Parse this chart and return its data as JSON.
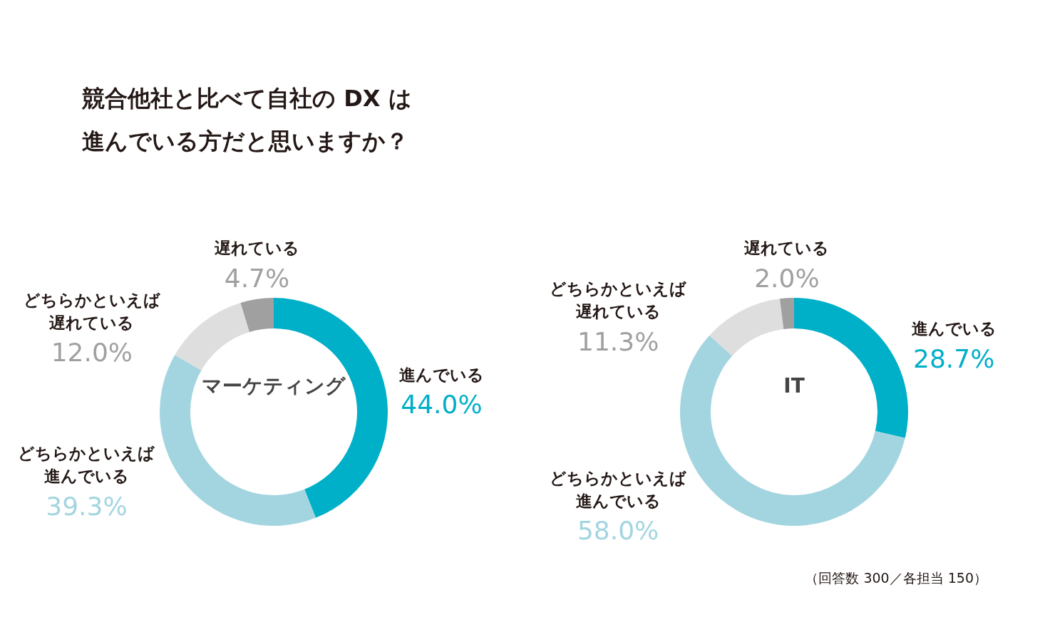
{
  "chart_data": [
    {
      "type": "other",
      "title": "競合他社と比べて自社の DX は進んでいる方だと思いますか？"
    },
    {
      "type": "donut",
      "title": "マーケティング",
      "categories": [
        "進んでいる",
        "どちらかといえば進んでいる",
        "どちらかといえば遅れている",
        "遅れている"
      ],
      "values": [
        44.0,
        39.3,
        12.0,
        4.7
      ],
      "colors": [
        "#00afc8",
        "#a3d5e0",
        "#dedede",
        "#a0a0a0"
      ],
      "value_labels": [
        "44.0%",
        "39.3%",
        "12.0%",
        "4.7%"
      ]
    },
    {
      "type": "donut",
      "title": "IT",
      "categories": [
        "進んでいる",
        "どちらかといえば進んでいる",
        "どちらかといえば遅れている",
        "遅れている"
      ],
      "values": [
        28.7,
        58.0,
        11.3,
        2.0
      ],
      "colors": [
        "#00afc8",
        "#a3d5e0",
        "#dedede",
        "#a0a0a0"
      ],
      "value_labels": [
        "28.7%",
        "58.0%",
        "11.3%",
        "2.0%"
      ],
      "annotations": [
        "（回答数 300／各担当 150）"
      ]
    }
  ]
}
